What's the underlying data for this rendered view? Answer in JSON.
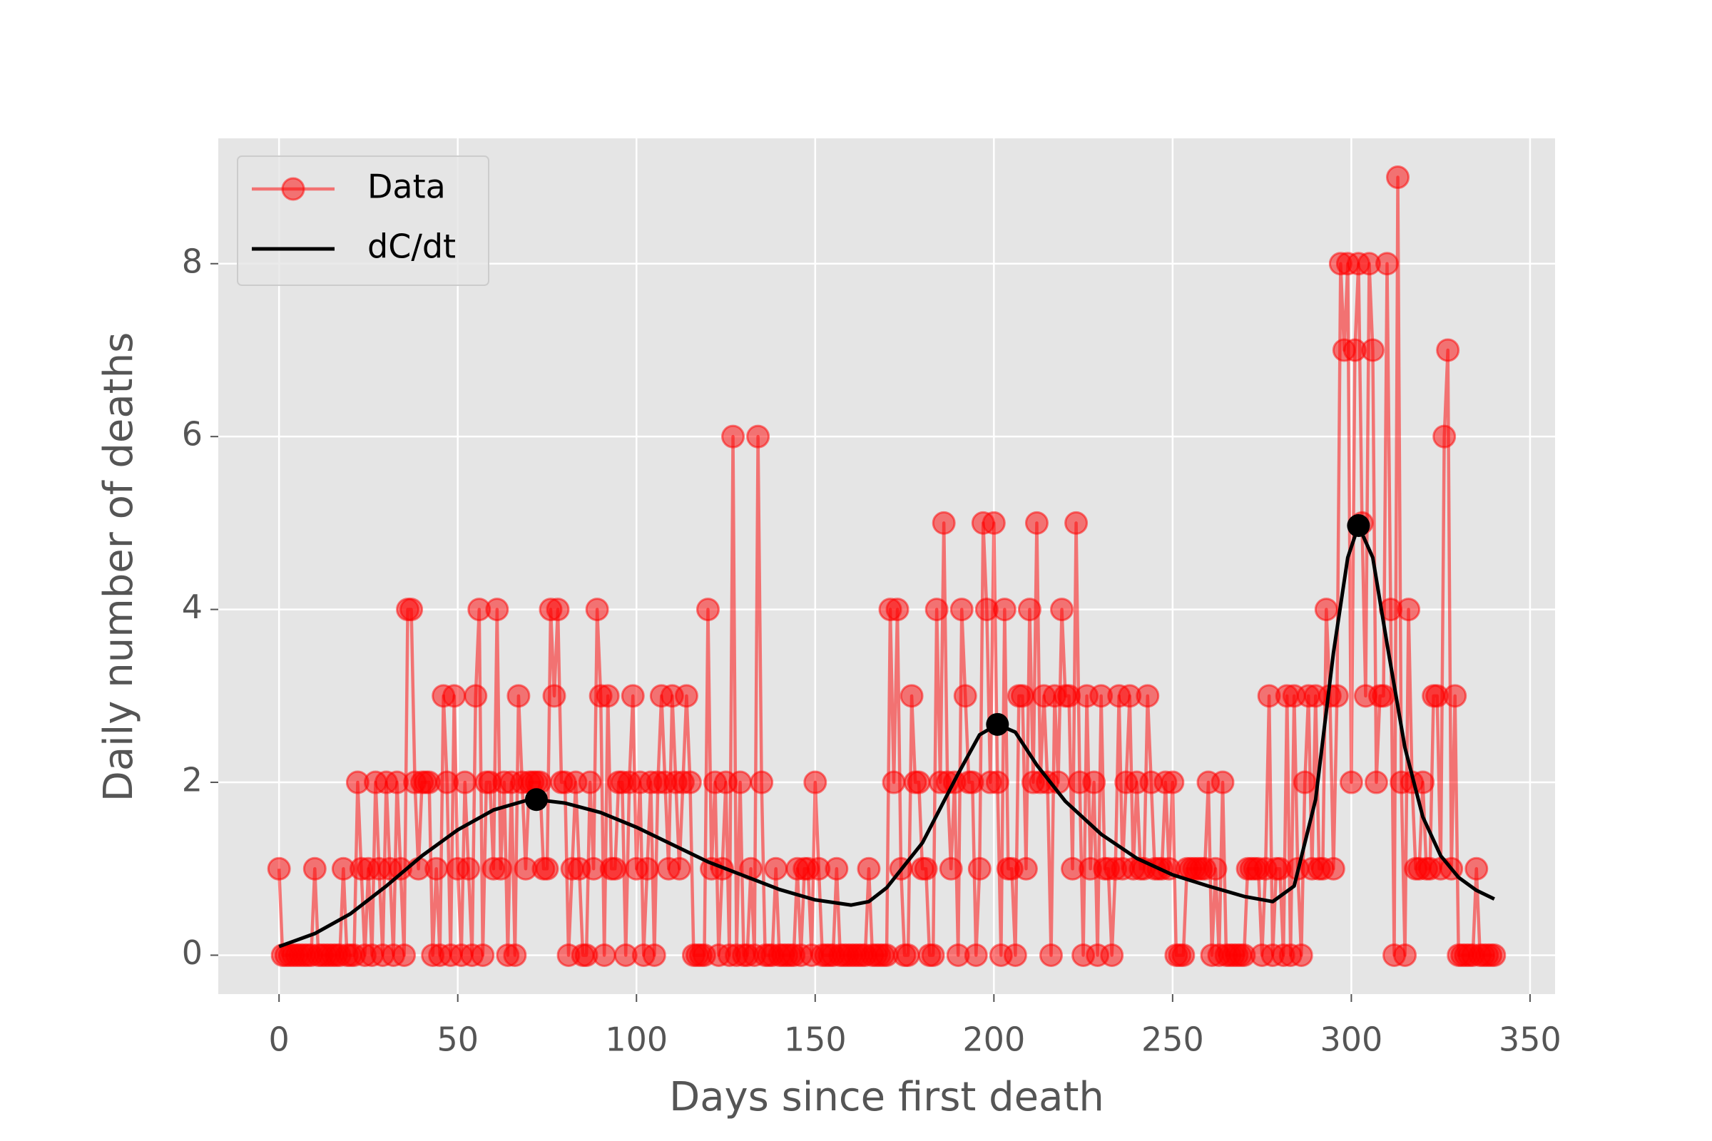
{
  "chart_data": {
    "type": "line",
    "xlabel": "Days since first death",
    "ylabel": "Daily number of deaths",
    "xlim": [
      -17,
      357
    ],
    "ylim": [
      -0.45,
      9.45
    ],
    "xticks": [
      0,
      50,
      100,
      150,
      200,
      250,
      300,
      350
    ],
    "yticks": [
      0,
      2,
      4,
      6,
      8
    ],
    "grid": true,
    "legend": "upper left",
    "series": [
      {
        "name": "Data",
        "color": "#ff0000",
        "marker": "circle",
        "x": [
          0,
          1,
          2,
          3,
          4,
          5,
          6,
          7,
          8,
          9,
          10,
          11,
          12,
          13,
          14,
          15,
          16,
          17,
          18,
          19,
          20,
          21,
          22,
          23,
          24,
          25,
          26,
          27,
          28,
          29,
          30,
          31,
          32,
          33,
          34,
          35,
          36,
          37,
          38,
          39,
          40,
          41,
          42,
          43,
          44,
          45,
          46,
          47,
          48,
          49,
          50,
          51,
          52,
          53,
          54,
          55,
          56,
          57,
          58,
          59,
          60,
          61,
          62,
          63,
          64,
          65,
          66,
          67,
          68,
          69,
          70,
          71,
          72,
          73,
          74,
          75,
          76,
          77,
          78,
          79,
          80,
          81,
          82,
          83,
          84,
          85,
          86,
          87,
          88,
          89,
          90,
          91,
          92,
          93,
          94,
          95,
          96,
          97,
          98,
          99,
          100,
          101,
          102,
          103,
          104,
          105,
          106,
          107,
          108,
          109,
          110,
          111,
          112,
          113,
          114,
          115,
          116,
          117,
          118,
          119,
          120,
          121,
          122,
          123,
          124,
          125,
          126,
          127,
          128,
          129,
          130,
          131,
          132,
          133,
          134,
          135,
          136,
          137,
          138,
          139,
          140,
          141,
          142,
          143,
          144,
          145,
          146,
          147,
          148,
          149,
          150,
          151,
          152,
          153,
          154,
          155,
          156,
          157,
          158,
          159,
          160,
          161,
          162,
          163,
          164,
          165,
          166,
          167,
          168,
          169,
          170,
          171,
          172,
          173,
          174,
          175,
          176,
          177,
          178,
          179,
          180,
          181,
          182,
          183,
          184,
          185,
          186,
          187,
          188,
          189,
          190,
          191,
          192,
          193,
          194,
          195,
          196,
          197,
          198,
          199,
          200,
          201,
          202,
          203,
          204,
          205,
          206,
          207,
          208,
          209,
          210,
          211,
          212,
          213,
          214,
          215,
          216,
          217,
          218,
          219,
          220,
          221,
          222,
          223,
          224,
          225,
          226,
          227,
          228,
          229,
          230,
          231,
          232,
          233,
          234,
          235,
          236,
          237,
          238,
          239,
          240,
          241,
          242,
          243,
          244,
          245,
          246,
          247,
          248,
          249,
          250,
          251,
          252,
          253,
          254,
          255,
          256,
          257,
          258,
          259,
          260,
          261,
          262,
          263,
          264,
          265,
          266,
          267,
          268,
          269,
          270,
          271,
          272,
          273,
          274,
          275,
          276,
          277,
          278,
          279,
          280,
          281,
          282,
          283,
          284,
          285,
          286,
          287,
          288,
          289,
          290,
          291,
          292,
          293,
          294,
          295,
          296,
          297,
          298,
          299,
          300,
          301,
          302,
          303,
          304,
          305,
          306,
          307,
          308,
          309,
          310,
          311,
          312,
          313,
          314,
          315,
          316,
          317,
          318,
          319,
          320,
          321,
          322,
          323,
          324,
          325,
          326,
          327,
          328,
          329,
          330,
          331,
          332,
          333,
          334,
          335,
          336,
          337,
          338,
          339,
          340
        ],
        "values": [
          1,
          0,
          0,
          0,
          0,
          0,
          0,
          0,
          0,
          0,
          1,
          0,
          0,
          0,
          0,
          0,
          0,
          0,
          1,
          0,
          0,
          0,
          2,
          1,
          0,
          1,
          0,
          2,
          1,
          0,
          2,
          1,
          0,
          2,
          1,
          0,
          4,
          4,
          2,
          1,
          2,
          2,
          2,
          0,
          1,
          0,
          3,
          2,
          0,
          3,
          1,
          0,
          2,
          1,
          0,
          3,
          4,
          0,
          2,
          2,
          1,
          4,
          1,
          2,
          0,
          2,
          0,
          3,
          2,
          1,
          2,
          2,
          2,
          2,
          1,
          1,
          4,
          3,
          4,
          2,
          2,
          0,
          1,
          2,
          1,
          0,
          0,
          2,
          1,
          4,
          3,
          0,
          3,
          1,
          1,
          2,
          2,
          0,
          2,
          3,
          1,
          2,
          0,
          1,
          2,
          0,
          2,
          3,
          2,
          1,
          3,
          2,
          1,
          2,
          3,
          2,
          0,
          0,
          0,
          0,
          4,
          1,
          2,
          0,
          1,
          2,
          0,
          6,
          0,
          2,
          0,
          0,
          1,
          0,
          6,
          2,
          0,
          0,
          0,
          1,
          0,
          0,
          0,
          0,
          0,
          1,
          0,
          1,
          1,
          0,
          2,
          1,
          0,
          0,
          0,
          0,
          1,
          0,
          0,
          0,
          0,
          0,
          0,
          0,
          0,
          1,
          0,
          0,
          0,
          0,
          0,
          4,
          2,
          4,
          1,
          0,
          0,
          3,
          2,
          2,
          1,
          1,
          0,
          0,
          4,
          2,
          5,
          2,
          1,
          2,
          0,
          4,
          3,
          2,
          2,
          0,
          1,
          5,
          4,
          2,
          5,
          2,
          0,
          4,
          1,
          1,
          0,
          3,
          3,
          1,
          4,
          2,
          5,
          2,
          3,
          2,
          0,
          3,
          2,
          4,
          3,
          3,
          1,
          5,
          2,
          0,
          3,
          1,
          2,
          0,
          3,
          1,
          1,
          0,
          1,
          3,
          1,
          2,
          3,
          1,
          2,
          1,
          1,
          3,
          2,
          1,
          1,
          1,
          2,
          1,
          2,
          0,
          0,
          0,
          1,
          1,
          1,
          1,
          1,
          1,
          2,
          0,
          1,
          0,
          2,
          0,
          0,
          0,
          0,
          0,
          0,
          1,
          1,
          1,
          1,
          0,
          1,
          3,
          0,
          1,
          1,
          0,
          3,
          0,
          3,
          1,
          0,
          2,
          3,
          1,
          3,
          1,
          1,
          4,
          3,
          1,
          3,
          8,
          7,
          8,
          2,
          7,
          8,
          5,
          3,
          8,
          7,
          2,
          3,
          3,
          8,
          4,
          0,
          9,
          2,
          0,
          4,
          2,
          1,
          1,
          2,
          1,
          1,
          3,
          3,
          1,
          6,
          7,
          1,
          3,
          0,
          0,
          0,
          0,
          0,
          1,
          0,
          0,
          0,
          0,
          0
        ]
      },
      {
        "name": "dC/dt",
        "color": "#000000",
        "x": [
          0,
          10,
          20,
          30,
          40,
          50,
          60,
          70,
          72,
          80,
          90,
          100,
          110,
          120,
          130,
          140,
          150,
          160,
          165,
          170,
          180,
          190,
          196,
          201,
          206,
          212,
          220,
          230,
          240,
          250,
          260,
          270,
          278,
          284,
          290,
          295,
          299,
          302,
          306,
          310,
          315,
          320,
          325,
          330,
          335,
          340
        ],
        "values": [
          0.1,
          0.25,
          0.48,
          0.8,
          1.15,
          1.45,
          1.68,
          1.8,
          1.8,
          1.76,
          1.65,
          1.48,
          1.28,
          1.08,
          0.92,
          0.76,
          0.64,
          0.58,
          0.62,
          0.78,
          1.3,
          2.1,
          2.55,
          2.67,
          2.58,
          2.2,
          1.78,
          1.4,
          1.12,
          0.93,
          0.8,
          0.68,
          0.62,
          0.8,
          1.8,
          3.5,
          4.6,
          4.97,
          4.6,
          3.6,
          2.4,
          1.6,
          1.15,
          0.9,
          0.75,
          0.65
        ]
      }
    ],
    "peaks": {
      "color": "#000000",
      "x": [
        72,
        201,
        302
      ],
      "values": [
        1.8,
        2.67,
        4.97
      ]
    }
  }
}
